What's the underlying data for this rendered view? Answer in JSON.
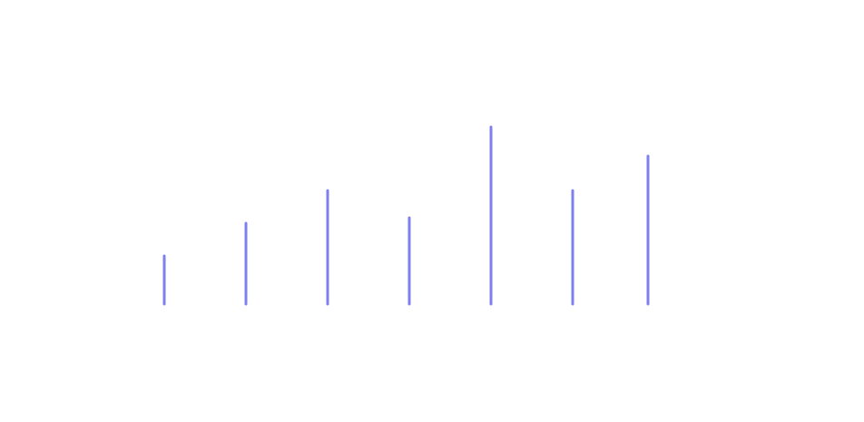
{
  "chart_data": {
    "type": "bar",
    "style": "stem",
    "title": "",
    "xlabel": "",
    "ylabel": "",
    "x": [
      1,
      2,
      3,
      4,
      5,
      6,
      7
    ],
    "values": [
      53,
      89,
      125,
      95,
      195,
      125,
      163
    ],
    "ylim": [
      0,
      200
    ],
    "grid": false,
    "legend": "none",
    "color": "#7f7fef"
  }
}
